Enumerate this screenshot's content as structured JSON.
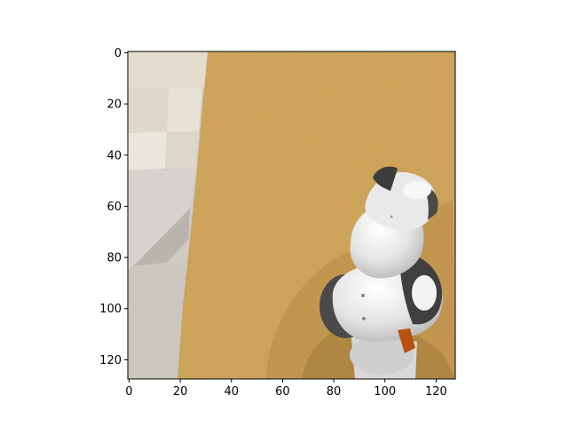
{
  "image_axes": {
    "x_ticks": [
      {
        "value": 0,
        "label": "0"
      },
      {
        "value": 20,
        "label": "20"
      },
      {
        "value": 40,
        "label": "40"
      },
      {
        "value": 60,
        "label": "60"
      },
      {
        "value": 80,
        "label": "80"
      },
      {
        "value": 100,
        "label": "100"
      },
      {
        "value": 120,
        "label": "120"
      }
    ],
    "y_ticks": [
      {
        "value": 0,
        "label": "0"
      },
      {
        "value": 20,
        "label": "20"
      },
      {
        "value": 40,
        "label": "40"
      },
      {
        "value": 60,
        "label": "60"
      },
      {
        "value": 80,
        "label": "80"
      },
      {
        "value": 100,
        "label": "100"
      },
      {
        "value": 120,
        "label": "120"
      }
    ],
    "x_range": [
      -0.5,
      127.5
    ],
    "y_range": [
      -0.5,
      127.5
    ],
    "y_inverted": true
  },
  "scene": {
    "description_colors": {
      "floor_left": "#d2cdc6",
      "floor_tile_dark": "#c2bdb6",
      "floor_tile_light": "#e3ddd2",
      "table_wood": "#d6a95a",
      "table_wood_dark": "#c8974a",
      "shadow": "#9f7d3f",
      "robot_white": "#e8e8e8",
      "robot_light": "#f6f6f6",
      "robot_gray": "#9a9a9a",
      "robot_dark": "#4a4a4a",
      "orange_part": "#b5520f"
    }
  }
}
